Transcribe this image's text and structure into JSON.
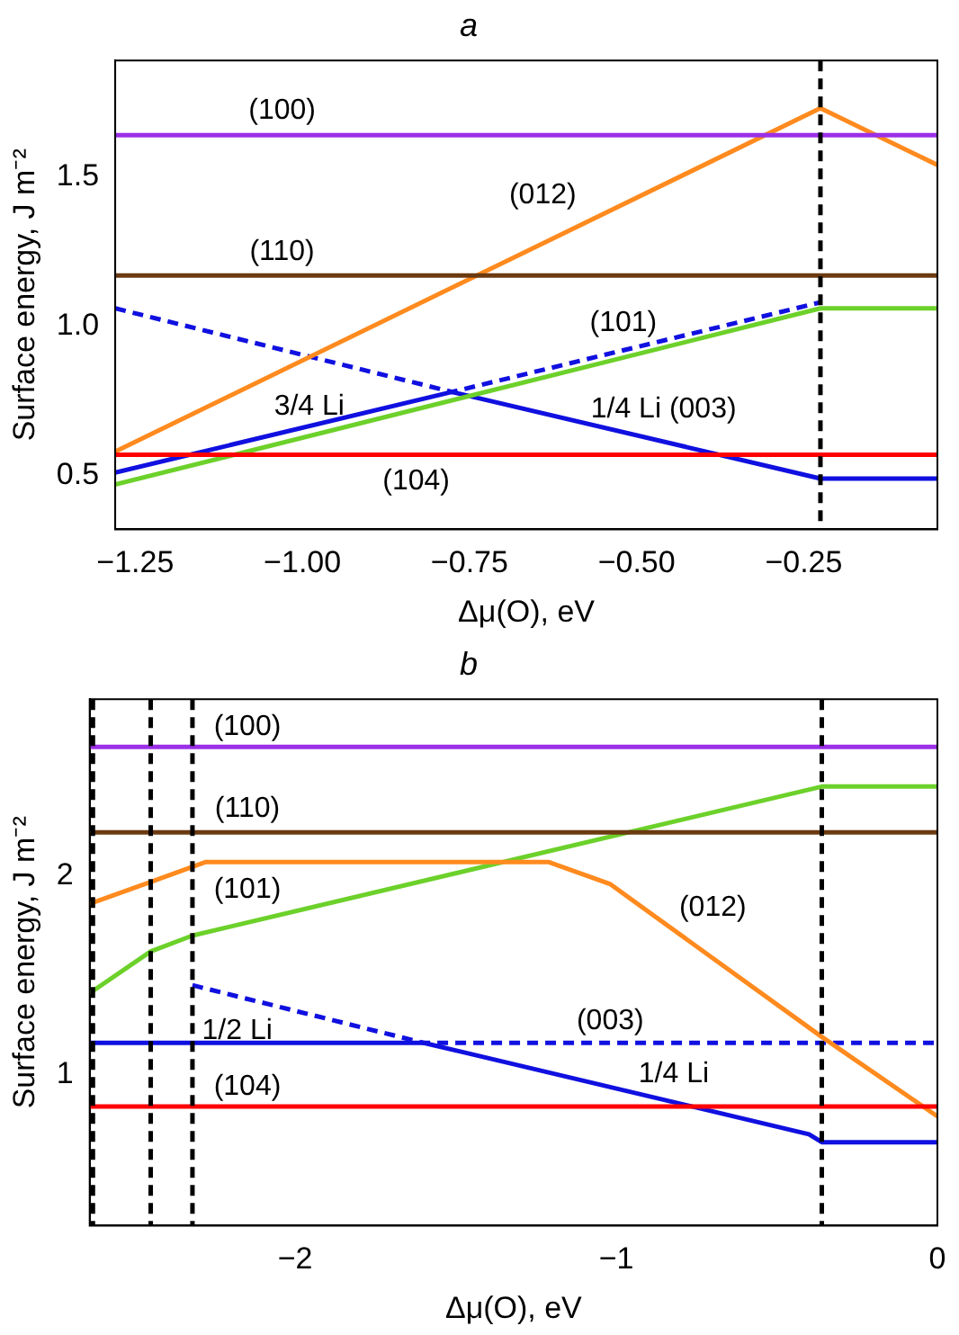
{
  "chart_data": [
    {
      "type": "line",
      "title": "a",
      "xlabel": "Δμ(O), eV",
      "ylabel": "Surface energy, J m⁻²",
      "marker": "none",
      "xlim": [
        -1.28,
        -0.05
      ],
      "xticks": [
        {
          "value": -1.25,
          "label": "−1.25"
        },
        {
          "value": -1,
          "label": "−1.00"
        },
        {
          "value": -0.75,
          "label": "−0.75"
        },
        {
          "value": -0.5,
          "label": "−0.50"
        },
        {
          "value": -0.25,
          "label": "−0.25"
        }
      ],
      "ylim": [
        0.32,
        1.89
      ],
      "yticks": [
        0.5,
        {
          "value": 1,
          "label": "1.0"
        },
        1.5
      ],
      "series": [
        {
          "color": "#9b30e8",
          "x": [
            -1.28,
            -0.05
          ],
          "values": [
            1.64,
            1.64
          ]
        },
        {
          "color": "#6b3a10",
          "x": [
            -1.28,
            -0.05
          ],
          "values": [
            1.17,
            1.17
          ]
        },
        {
          "color": "#ff0000",
          "x": [
            -1.28,
            -0.05
          ],
          "values": [
            0.57,
            0.57
          ]
        },
        {
          "color": "#ff8a1e",
          "x": [
            -1.28,
            -0.225,
            -0.05
          ],
          "values": [
            0.58,
            1.73,
            1.54
          ]
        },
        {
          "color": "#6cd12a",
          "x": [
            -1.28,
            -0.225,
            -0.05
          ],
          "values": [
            0.47,
            1.06,
            1.06
          ]
        },
        {
          "color": "#1010e0",
          "x": [
            -1.28,
            -0.776,
            -0.225,
            -0.05
          ],
          "values": [
            0.51,
            0.78,
            0.49,
            0.49
          ]
        },
        {
          "color": "#1010e0",
          "line_style": "dashed",
          "x": [
            -1.28,
            -0.776,
            -0.225
          ],
          "values": [
            1.06,
            0.78,
            1.08
          ]
        }
      ],
      "ref_lines": [
        {
          "axis": "x",
          "value": -0.225,
          "color": "#000000",
          "line_style": "dashed"
        }
      ],
      "annotations": [
        "(100)",
        "(012)",
        "(110)",
        "(101)",
        "3/4 Li",
        "1/4 Li (003)",
        "(104)"
      ]
    },
    {
      "type": "line",
      "title": "b",
      "xlabel": "Δμ(O), eV",
      "ylabel": "Surface energy, J m⁻²",
      "marker": "none",
      "xlim": [
        -2.64,
        0
      ],
      "xticks": [
        {
          "value": -2,
          "label": "−2"
        },
        {
          "value": -1,
          "label": "−1"
        },
        0
      ],
      "ylim": [
        0.24,
        2.89
      ],
      "yticks": [
        1,
        2
      ],
      "series": [
        {
          "color": "#9b30e8",
          "x": [
            -2.64,
            0
          ],
          "values": [
            2.65,
            2.65
          ]
        },
        {
          "color": "#6b3a10",
          "x": [
            -2.64,
            0
          ],
          "values": [
            2.22,
            2.22
          ]
        },
        {
          "color": "#ff0000",
          "x": [
            -2.64,
            0
          ],
          "values": [
            0.84,
            0.84
          ]
        },
        {
          "color": "#ff8a1e",
          "x": [
            -2.64,
            -2.45,
            -2.28,
            -1.21,
            -1.02,
            -0.36,
            0
          ],
          "values": [
            1.86,
            1.97,
            2.07,
            2.07,
            1.96,
            1.19,
            0.79
          ]
        },
        {
          "color": "#6cd12a",
          "x": [
            -2.64,
            -2.45,
            -2.32,
            -0.36,
            0
          ],
          "values": [
            1.41,
            1.62,
            1.7,
            2.45,
            2.45
          ]
        },
        {
          "color": "#1010e0",
          "x": [
            -2.64,
            -1.6,
            -0.4,
            -0.36,
            0
          ],
          "values": [
            1.16,
            1.16,
            0.7,
            0.66,
            0.66
          ]
        },
        {
          "color": "#1010e0",
          "line_style": "dashed",
          "x": [
            -2.32,
            -1.6,
            0
          ],
          "values": [
            1.45,
            1.16,
            1.16
          ]
        }
      ],
      "ref_lines": [
        {
          "axis": "x",
          "value": -2.63,
          "color": "#000000",
          "line_style": "dashed"
        },
        {
          "axis": "x",
          "value": -2.45,
          "color": "#000000",
          "line_style": "dashed"
        },
        {
          "axis": "x",
          "value": -2.32,
          "color": "#000000",
          "line_style": "dashed"
        },
        {
          "axis": "x",
          "value": -0.36,
          "color": "#000000",
          "line_style": "dashed"
        }
      ],
      "annotations": [
        "(100)",
        "(110)",
        "(101)",
        "(012)",
        "1/2 Li",
        "(003)",
        "1/4 Li",
        "(104)"
      ]
    }
  ]
}
